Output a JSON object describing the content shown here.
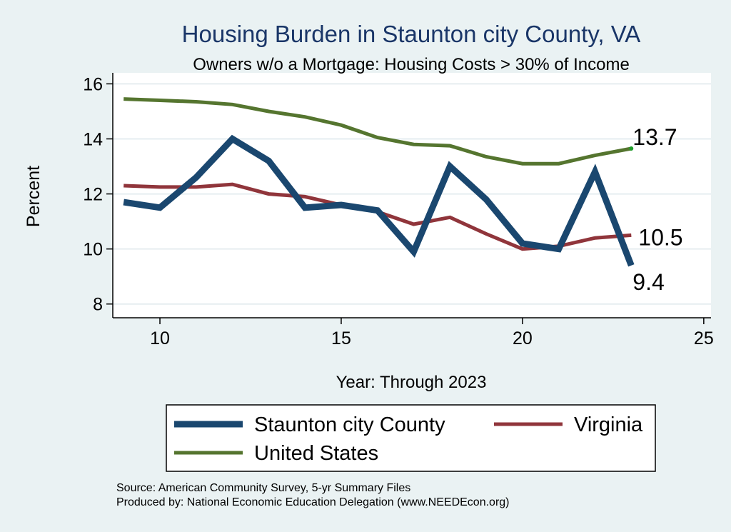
{
  "chart_data": {
    "type": "line",
    "title": "Housing Burden in Staunton city County, VA",
    "subtitle": "Owners w/o a Mortgage: Housing Costs > 30% of Income",
    "xlabel": "Year: Through 2023",
    "ylabel": "Percent",
    "xlim": [
      8.7,
      25.2
    ],
    "ylim": [
      7.5,
      16.4
    ],
    "xticks": [
      10,
      15,
      20,
      25
    ],
    "yticks": [
      8,
      10,
      12,
      14,
      16
    ],
    "grid": true,
    "series": [
      {
        "name": "Staunton city County",
        "color": "#1a476f",
        "x": [
          9,
          10,
          11,
          12,
          13,
          14,
          15,
          16,
          17,
          18,
          19,
          20,
          21,
          22,
          23
        ],
        "values": [
          11.7,
          11.5,
          12.6,
          14.0,
          13.2,
          11.5,
          11.6,
          11.4,
          9.9,
          13.0,
          11.8,
          10.2,
          10.0,
          12.8,
          9.4
        ],
        "end_label": "9.4"
      },
      {
        "name": "Virginia",
        "color": "#90353b",
        "x": [
          9,
          10,
          11,
          12,
          13,
          14,
          15,
          16,
          17,
          18,
          19,
          20,
          21,
          22,
          23
        ],
        "values": [
          12.3,
          12.25,
          12.25,
          12.35,
          12.0,
          11.9,
          11.6,
          11.35,
          10.9,
          11.15,
          10.55,
          10.0,
          10.1,
          10.4,
          10.5
        ],
        "end_label": "10.5"
      },
      {
        "name": "United States",
        "color": "#55752f",
        "x": [
          9,
          10,
          11,
          12,
          13,
          14,
          15,
          16,
          17,
          18,
          19,
          20,
          21,
          22,
          23
        ],
        "values": [
          15.45,
          15.4,
          15.35,
          15.25,
          15.0,
          14.8,
          14.5,
          14.05,
          13.8,
          13.75,
          13.35,
          13.1,
          13.1,
          13.4,
          13.65
        ],
        "end_label": "13.7"
      }
    ],
    "legend_position": "bottom",
    "source_lines": [
      "Source: American Community Survey, 5-yr Summary Files",
      "Produced by: National Economic Education Delegation (www.NEEDEcon.org)"
    ]
  }
}
